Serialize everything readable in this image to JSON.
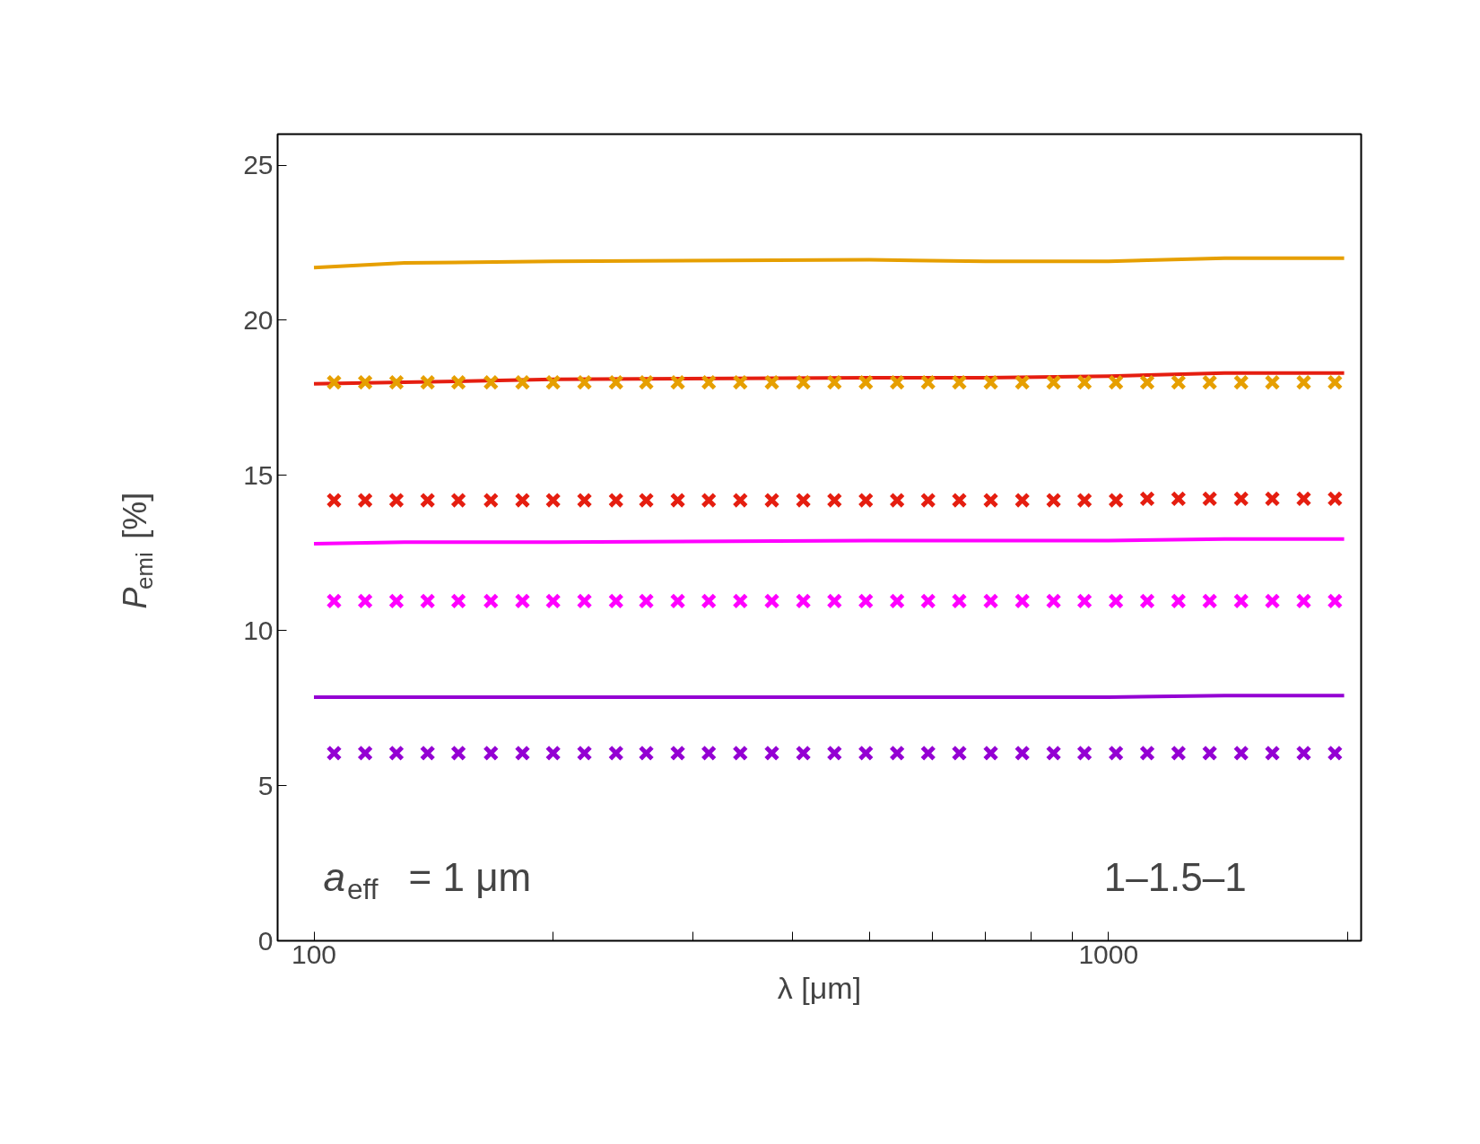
{
  "chart_data": {
    "type": "line",
    "xlabel": "λ [μm]",
    "ylabel": "P$_{emi}$ [%]",
    "log": "x",
    "grid": false,
    "xlim": [
      90,
      2080
    ],
    "xticks": [
      100,
      1000,
      {
        "value": 200,
        "label": null
      },
      {
        "value": 300,
        "label": null
      },
      {
        "value": 400,
        "label": null
      },
      {
        "value": 500,
        "label": null
      },
      {
        "value": 600,
        "label": null
      },
      {
        "value": 700,
        "label": null
      },
      {
        "value": 800,
        "label": null
      },
      {
        "value": 900,
        "label": null
      },
      {
        "value": 2000,
        "label": null
      }
    ],
    "ylim": [
      0,
      26
    ],
    "yticks": [
      0,
      5,
      10,
      15,
      20,
      25
    ],
    "annotations": [
      "a$_{eff}$ = 1 μm",
      "1–1.5–1"
    ],
    "series": [
      {
        "type": "line",
        "marker": "none",
        "color": "#e69f00",
        "x": [
          100,
          130,
          200,
          500,
          700,
          1000,
          1400,
          1980
        ],
        "values": [
          21.7,
          21.85,
          21.9,
          21.95,
          21.9,
          21.9,
          22.0,
          22.0
        ]
      },
      {
        "type": "line",
        "marker": "none",
        "color": "#e51e10",
        "x": [
          100,
          130,
          200,
          500,
          700,
          1000,
          1400,
          1980
        ],
        "values": [
          17.95,
          18.0,
          18.1,
          18.15,
          18.15,
          18.2,
          18.3,
          18.3
        ]
      },
      {
        "type": "line",
        "marker": "none",
        "color": "#ff00ff",
        "x": [
          100,
          130,
          200,
          500,
          700,
          1000,
          1400,
          1980
        ],
        "values": [
          12.8,
          12.85,
          12.85,
          12.9,
          12.9,
          12.9,
          12.95,
          12.95
        ]
      },
      {
        "type": "line",
        "marker": "none",
        "color": "#9400d3",
        "x": [
          100,
          130,
          200,
          500,
          700,
          1000,
          1400,
          1980
        ],
        "values": [
          7.85,
          7.85,
          7.85,
          7.85,
          7.85,
          7.85,
          7.9,
          7.9
        ]
      },
      {
        "type": "scatter",
        "marker": "cross",
        "color": "#e69f00",
        "x": [
          106,
          116,
          127,
          139,
          152,
          167,
          183,
          200,
          219,
          240,
          262,
          287,
          314,
          344,
          377,
          413,
          452,
          495,
          542,
          593,
          649,
          711,
          779,
          853,
          933,
          1022,
          1119,
          1225,
          1341,
          1469,
          1608,
          1761,
          1928
        ],
        "values": [
          18.0,
          18.0,
          18.0,
          18.0,
          18.0,
          18.0,
          18.0,
          18.0,
          18.0,
          18.0,
          18.0,
          18.0,
          18.0,
          18.0,
          18.0,
          18.0,
          18.0,
          18.0,
          18.0,
          18.0,
          18.0,
          18.0,
          18.0,
          18.0,
          18.0,
          18.0,
          18.0,
          18.0,
          18.0,
          18.0,
          18.0,
          18.0,
          18.0
        ]
      },
      {
        "type": "scatter",
        "marker": "cross",
        "color": "#e51e10",
        "x": [
          106,
          116,
          127,
          139,
          152,
          167,
          183,
          200,
          219,
          240,
          262,
          287,
          314,
          344,
          377,
          413,
          452,
          495,
          542,
          593,
          649,
          711,
          779,
          853,
          933,
          1022,
          1119,
          1225,
          1341,
          1469,
          1608,
          1761,
          1928
        ],
        "values": [
          14.2,
          14.2,
          14.2,
          14.2,
          14.2,
          14.2,
          14.2,
          14.2,
          14.2,
          14.2,
          14.2,
          14.2,
          14.2,
          14.2,
          14.2,
          14.2,
          14.2,
          14.2,
          14.2,
          14.2,
          14.2,
          14.2,
          14.2,
          14.2,
          14.2,
          14.2,
          14.25,
          14.25,
          14.25,
          14.25,
          14.25,
          14.25,
          14.25
        ]
      },
      {
        "type": "scatter",
        "marker": "cross",
        "color": "#ff00ff",
        "x": [
          106,
          116,
          127,
          139,
          152,
          167,
          183,
          200,
          219,
          240,
          262,
          287,
          314,
          344,
          377,
          413,
          452,
          495,
          542,
          593,
          649,
          711,
          779,
          853,
          933,
          1022,
          1119,
          1225,
          1341,
          1469,
          1608,
          1761,
          1928
        ],
        "values": [
          10.95,
          10.95,
          10.95,
          10.95,
          10.95,
          10.95,
          10.95,
          10.95,
          10.95,
          10.95,
          10.95,
          10.95,
          10.95,
          10.95,
          10.95,
          10.95,
          10.95,
          10.95,
          10.95,
          10.95,
          10.95,
          10.95,
          10.95,
          10.95,
          10.95,
          10.95,
          10.95,
          10.95,
          10.95,
          10.95,
          10.95,
          10.95,
          10.95
        ]
      },
      {
        "type": "scatter",
        "marker": "cross",
        "color": "#9400d3",
        "x": [
          106,
          116,
          127,
          139,
          152,
          167,
          183,
          200,
          219,
          240,
          262,
          287,
          314,
          344,
          377,
          413,
          452,
          495,
          542,
          593,
          649,
          711,
          779,
          853,
          933,
          1022,
          1119,
          1225,
          1341,
          1469,
          1608,
          1761,
          1928
        ],
        "values": [
          6.05,
          6.05,
          6.05,
          6.05,
          6.05,
          6.05,
          6.05,
          6.05,
          6.05,
          6.05,
          6.05,
          6.05,
          6.05,
          6.05,
          6.05,
          6.05,
          6.05,
          6.05,
          6.05,
          6.05,
          6.05,
          6.05,
          6.05,
          6.05,
          6.05,
          6.05,
          6.05,
          6.05,
          6.05,
          6.05,
          6.05,
          6.05,
          6.05
        ]
      }
    ]
  }
}
